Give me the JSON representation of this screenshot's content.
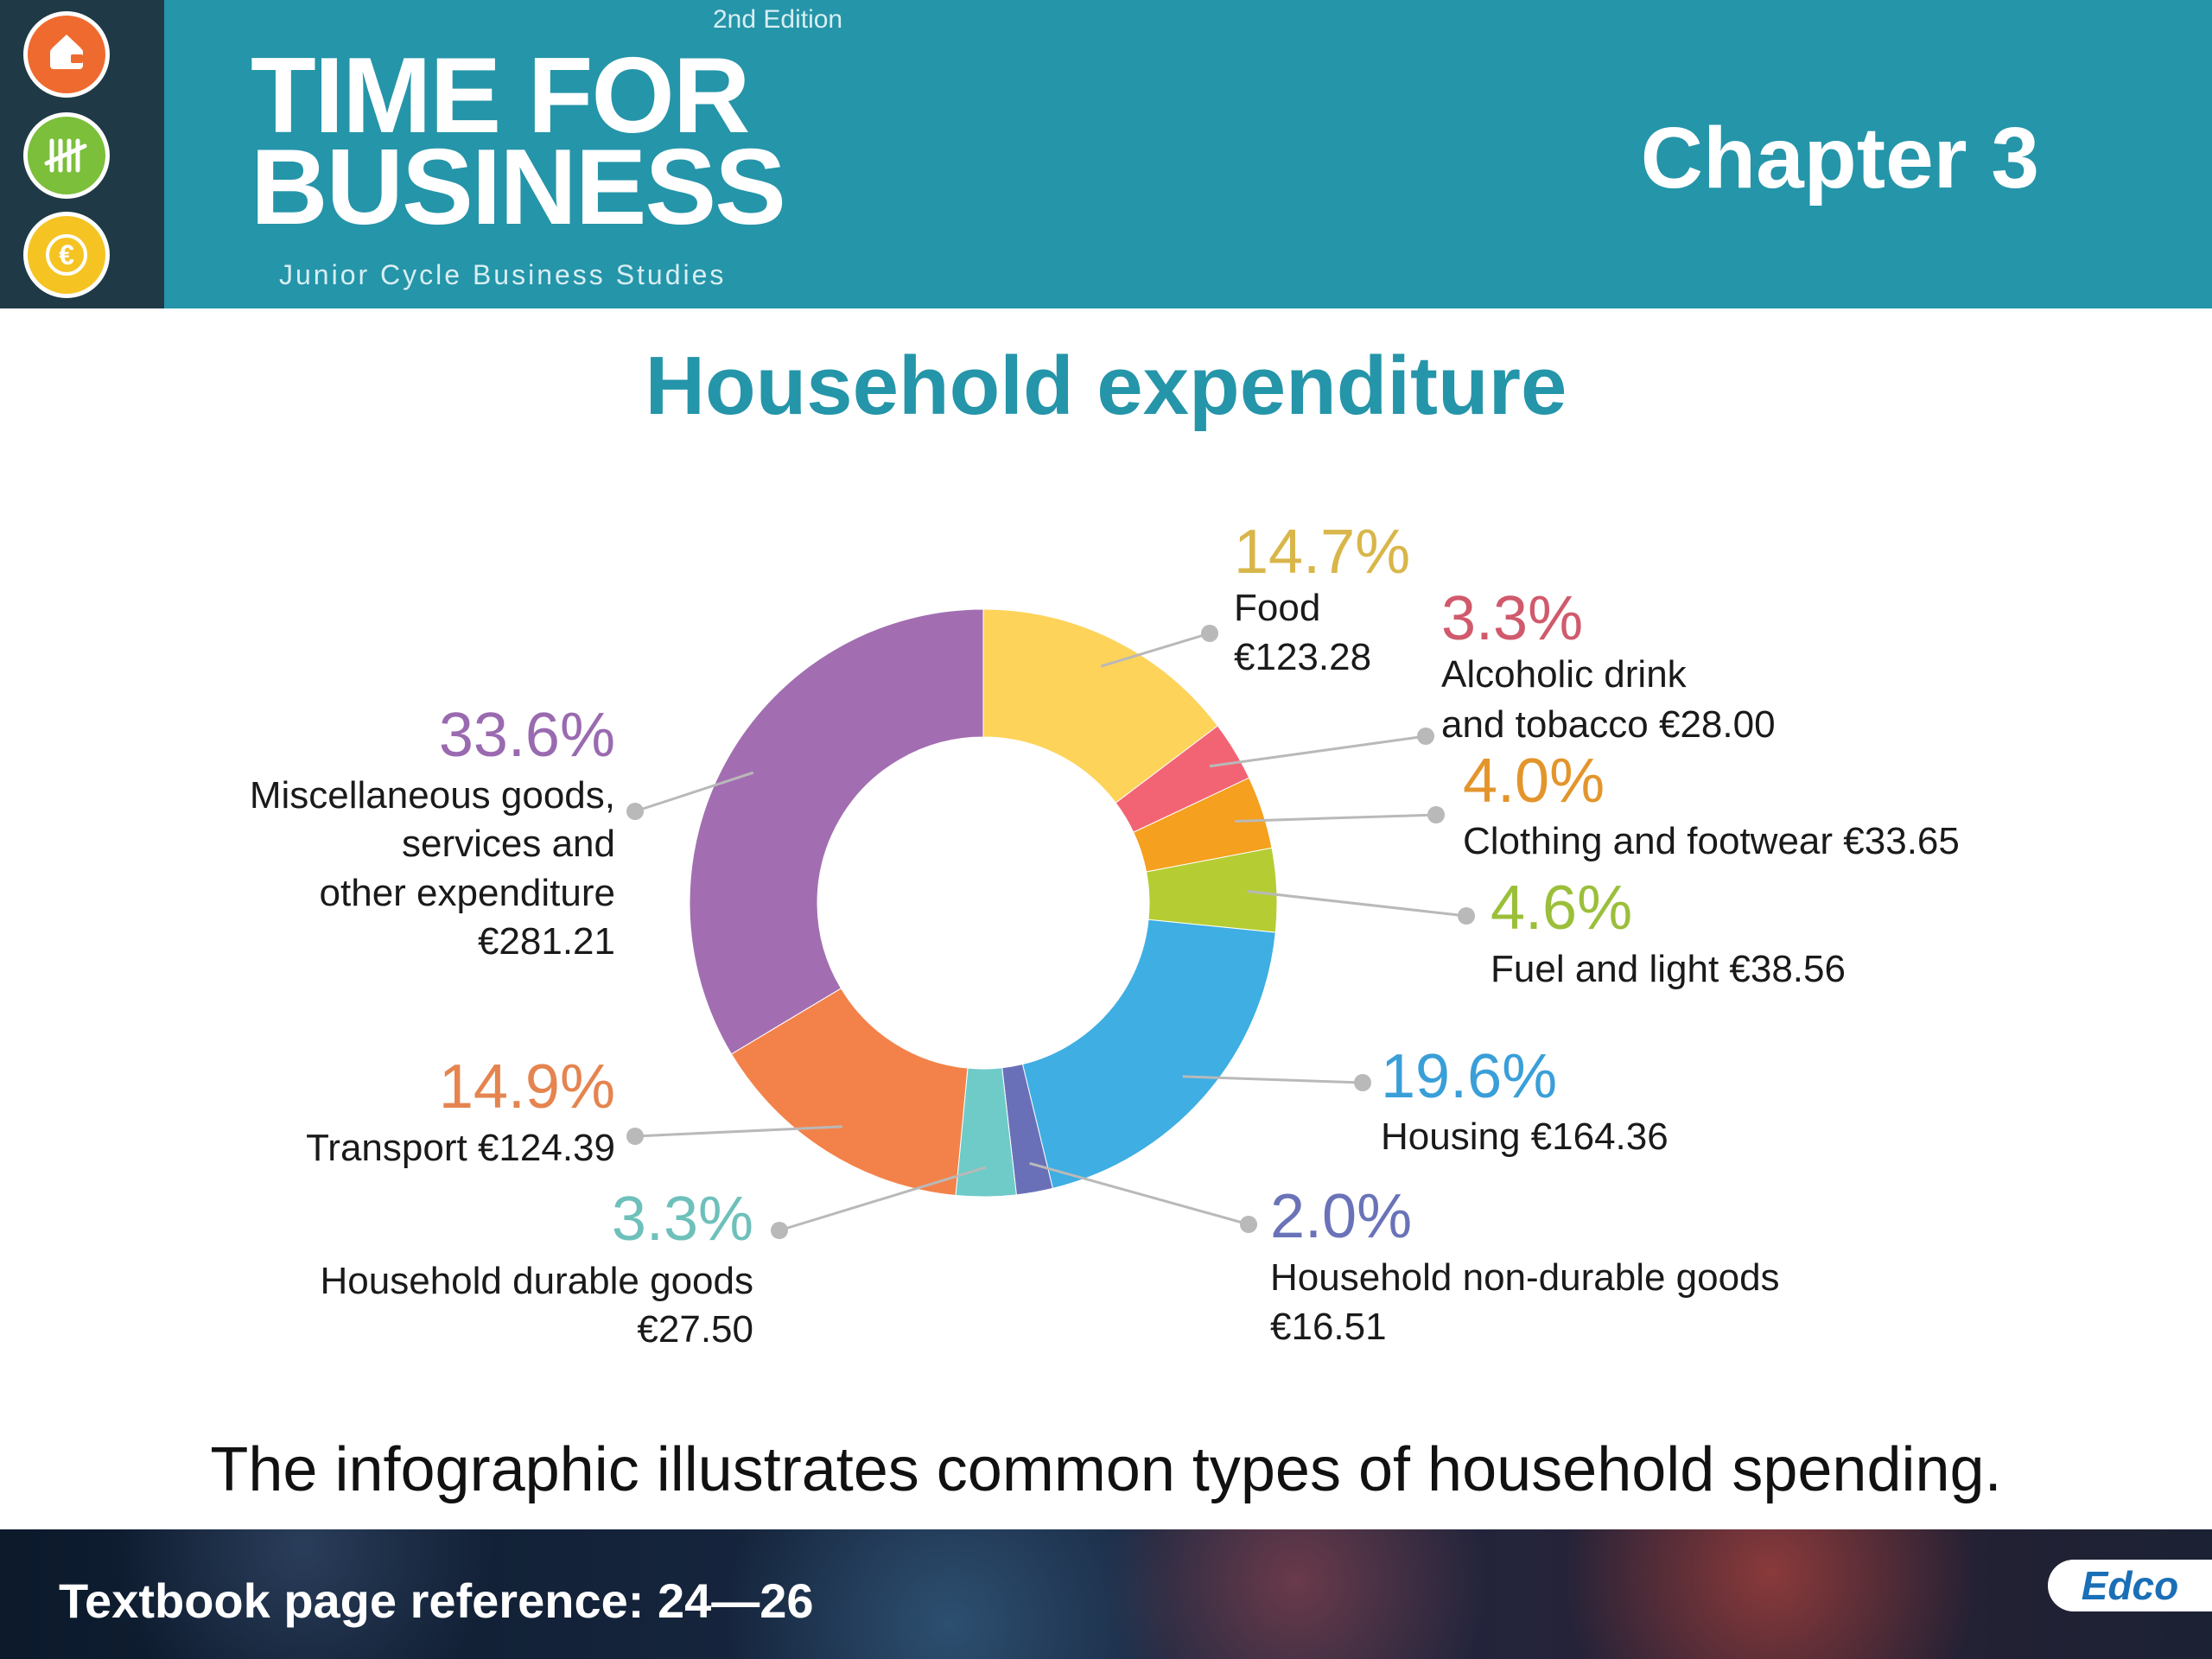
{
  "header": {
    "edition": "2nd Edition",
    "brand_line1": "TIME FOR",
    "brand_line2": "BUSINESS",
    "brand_subtitle": "Junior Cycle Business Studies",
    "chapter": "Chapter 3",
    "icons": [
      "wallet-icon",
      "tally-chart-icon",
      "euro-globe-icon"
    ]
  },
  "slide_title": "Household expenditure",
  "caption": "The infographic illustrates common types of household spending.",
  "footer": {
    "page_reference": "Textbook page reference: 24—26",
    "publisher": "Edco"
  },
  "chart_data": {
    "type": "pie",
    "donut": true,
    "slices": [
      {
        "percent_label": "14.7%",
        "value": 14.7,
        "label_lines": [
          "Food",
          "€123.28"
        ],
        "color": "#fdd35a",
        "label_color": "#d9b64a"
      },
      {
        "percent_label": "3.3%",
        "value": 3.3,
        "label_lines": [
          "Alcoholic drink",
          "and tobacco €28.00"
        ],
        "color": "#f26474",
        "label_color": "#d05a6c"
      },
      {
        "percent_label": "4.0%",
        "value": 4.0,
        "label_lines": [
          "Clothing and footwear €33.65"
        ],
        "color": "#f5a01e",
        "label_color": "#e3952c"
      },
      {
        "percent_label": "4.6%",
        "value": 4.6,
        "label_lines": [
          "Fuel and light €38.56"
        ],
        "color": "#b5cd33",
        "label_color": "#9bbf3a"
      },
      {
        "percent_label": "19.6%",
        "value": 19.6,
        "label_lines": [
          "Housing €164.36"
        ],
        "color": "#3eaee3",
        "label_color": "#3a9fd8"
      },
      {
        "percent_label": "2.0%",
        "value": 2.0,
        "label_lines": [
          "Household non-durable goods",
          "€16.51"
        ],
        "color": "#6a70b8",
        "label_color": "#6a73b8"
      },
      {
        "percent_label": "3.3%",
        "value": 3.3,
        "label_lines": [
          "Household durable goods",
          "€27.50"
        ],
        "color": "#6ecbc8",
        "label_color": "#6ec0bb"
      },
      {
        "percent_label": "14.9%",
        "value": 14.9,
        "label_lines": [
          "Transport €124.39"
        ],
        "color": "#f3824a",
        "label_color": "#e5844f"
      },
      {
        "percent_label": "33.6%",
        "value": 33.6,
        "label_lines": [
          "Miscellaneous goods,",
          "services and",
          "other expenditure",
          "€281.21"
        ],
        "color": "#a26eb1",
        "label_color": "#9a6ab0"
      }
    ]
  }
}
